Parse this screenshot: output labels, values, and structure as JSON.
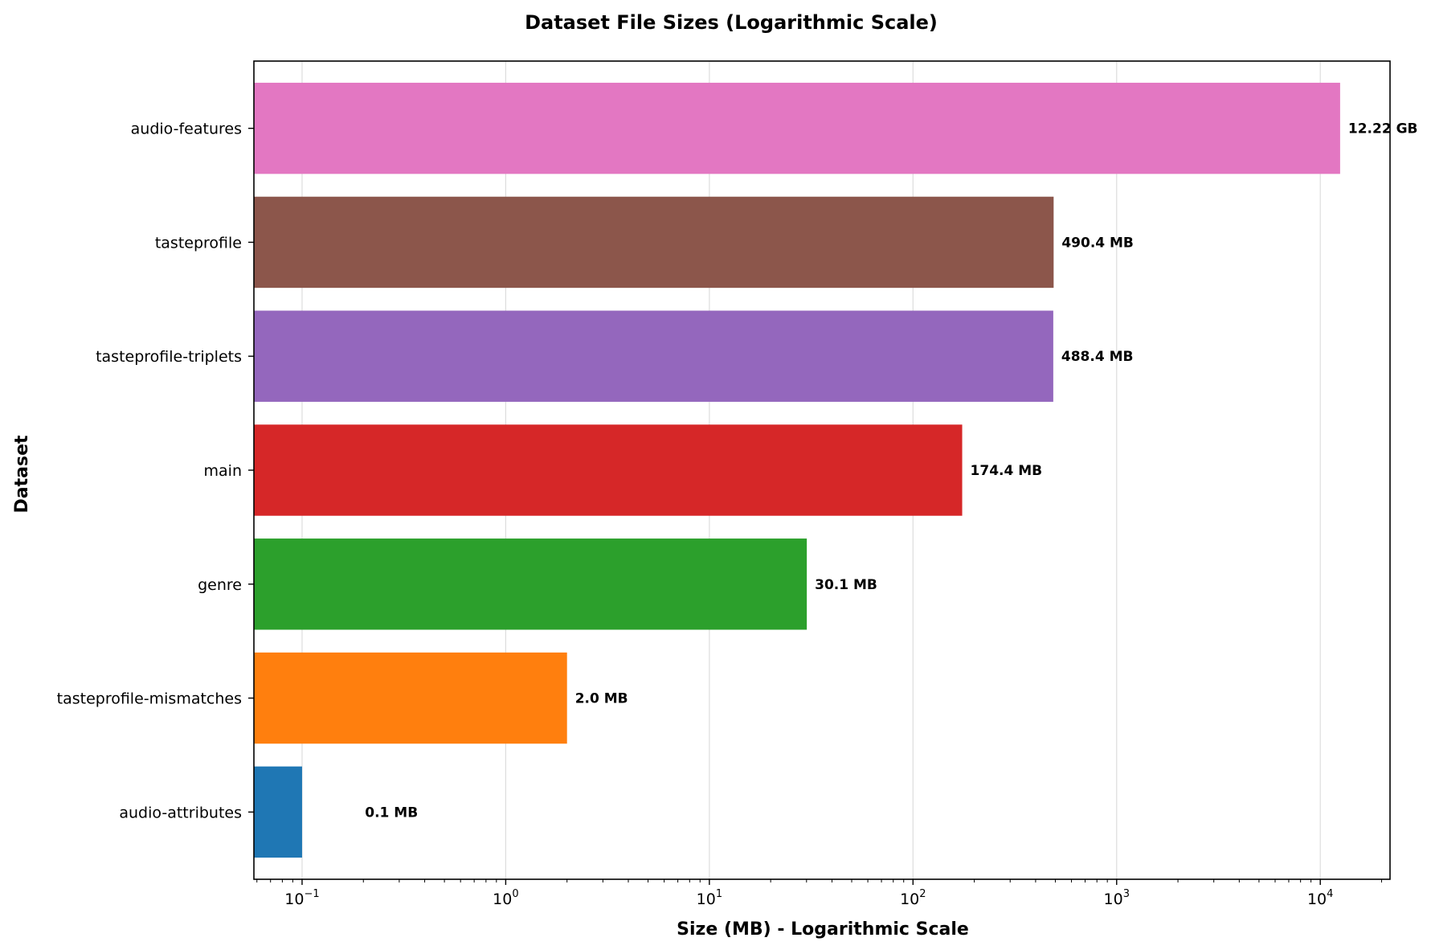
{
  "chart_data": {
    "type": "bar",
    "orientation": "horizontal",
    "title": "Dataset File Sizes (Logarithmic Scale)",
    "xlabel": "Size (MB) - Logarithmic Scale",
    "ylabel": "Dataset",
    "xscale": "log",
    "xlim": [
      0.058,
      22000
    ],
    "grid": "x-major",
    "legend": "none",
    "categories": [
      "audio-attributes",
      "tasteprofile-mismatches",
      "genre",
      "main",
      "tasteprofile-triplets",
      "tasteprofile",
      "audio-features"
    ],
    "values": [
      0.1,
      2.0,
      30.1,
      174.4,
      488.4,
      490.4,
      12513.3
    ],
    "value_labels": [
      "0.1 MB",
      "2.0 MB",
      "30.1 MB",
      "174.4 MB",
      "488.4 MB",
      "490.4 MB",
      "12.22 GB"
    ],
    "colors": [
      "#1f77b4",
      "#ff7f0e",
      "#2ca02c",
      "#d62728",
      "#9467bd",
      "#8c564b",
      "#e377c2"
    ],
    "x_ticks": [
      {
        "value": 0.1,
        "base": "10",
        "exp": "−1"
      },
      {
        "value": 1,
        "base": "10",
        "exp": "0"
      },
      {
        "value": 10,
        "base": "10",
        "exp": "1"
      },
      {
        "value": 100,
        "base": "10",
        "exp": "2"
      },
      {
        "value": 1000,
        "base": "10",
        "exp": "3"
      },
      {
        "value": 10000,
        "base": "10",
        "exp": "4"
      }
    ]
  }
}
